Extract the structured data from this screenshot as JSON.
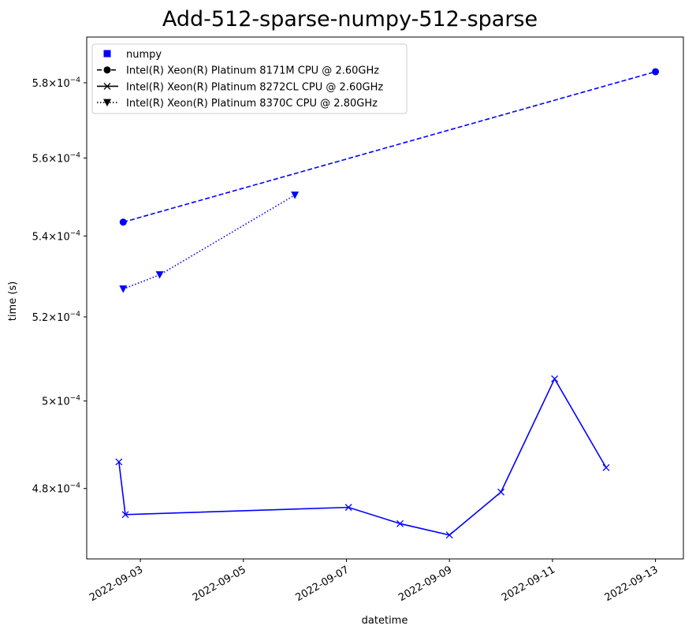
{
  "chart_data": {
    "type": "line",
    "title": "Add-512-sparse-numpy-512-sparse",
    "xlabel": "datetime",
    "ylabel": "time (s)",
    "y_scale": "log",
    "xlim": [
      "2022-09-01T23:00",
      "2022-09-13T13:00"
    ],
    "ylim": [
      0.0004645,
      0.0005925
    ],
    "x_ticks": [
      "2022-09-03",
      "2022-09-05",
      "2022-09-07",
      "2022-09-09",
      "2022-09-11",
      "2022-09-13"
    ],
    "y_ticks": [
      {
        "value": 0.00048,
        "mantissa": "4.8",
        "exponent": "−4"
      },
      {
        "value": 0.0005,
        "mantissa": "5",
        "exponent": "−4"
      },
      {
        "value": 0.00052,
        "mantissa": "5.2",
        "exponent": "−4"
      },
      {
        "value": 0.00054,
        "mantissa": "5.4",
        "exponent": "−4"
      },
      {
        "value": 0.00056,
        "mantissa": "5.6",
        "exponent": "−4"
      },
      {
        "value": 0.00058,
        "mantissa": "5.8",
        "exponent": "−4"
      }
    ],
    "color": "#0000ff",
    "legend_position": "top-left",
    "legend": [
      {
        "label": "numpy",
        "marker": "square",
        "line": "none"
      },
      {
        "label": "Intel(R) Xeon(R) Platinum 8171M CPU @ 2.60GHz",
        "marker": "circle",
        "line": "dashed"
      },
      {
        "label": "Intel(R) Xeon(R) Platinum 8272CL CPU @ 2.60GHz",
        "marker": "x",
        "line": "solid"
      },
      {
        "label": "Intel(R) Xeon(R) Platinum 8370C CPU @ 2.80GHz",
        "marker": "triangle-down",
        "line": "dotted"
      }
    ],
    "series": [
      {
        "name": "Intel(R) Xeon(R) Platinum 8171M CPU @ 2.60GHz",
        "marker": "circle",
        "line": "dashed",
        "points": [
          {
            "x": "2022-09-02T16:00",
            "y": 0.0005435
          },
          {
            "x": "2022-09-13T00:00",
            "y": 0.000583
          }
        ]
      },
      {
        "name": "Intel(R) Xeon(R) Platinum 8272CL CPU @ 2.60GHz",
        "marker": "x",
        "line": "solid",
        "points": [
          {
            "x": "2022-09-02T14:00",
            "y": 0.000486
          },
          {
            "x": "2022-09-02T17:00",
            "y": 0.0004742
          },
          {
            "x": "2022-09-07T01:00",
            "y": 0.0004758
          },
          {
            "x": "2022-09-08T01:00",
            "y": 0.0004722
          },
          {
            "x": "2022-09-09T00:00",
            "y": 0.0004697
          },
          {
            "x": "2022-09-10T00:00",
            "y": 0.0004792
          },
          {
            "x": "2022-09-11T01:00",
            "y": 0.0005052
          },
          {
            "x": "2022-09-12T01:00",
            "y": 0.0004847
          }
        ]
      },
      {
        "name": "Intel(R) Xeon(R) Platinum 8370C CPU @ 2.80GHz",
        "marker": "triangle-down",
        "line": "dotted",
        "points": [
          {
            "x": "2022-09-02T16:00",
            "y": 0.0005268
          },
          {
            "x": "2022-09-03T09:00",
            "y": 0.0005303
          },
          {
            "x": "2022-09-06T00:00",
            "y": 0.0005504
          }
        ]
      }
    ]
  }
}
